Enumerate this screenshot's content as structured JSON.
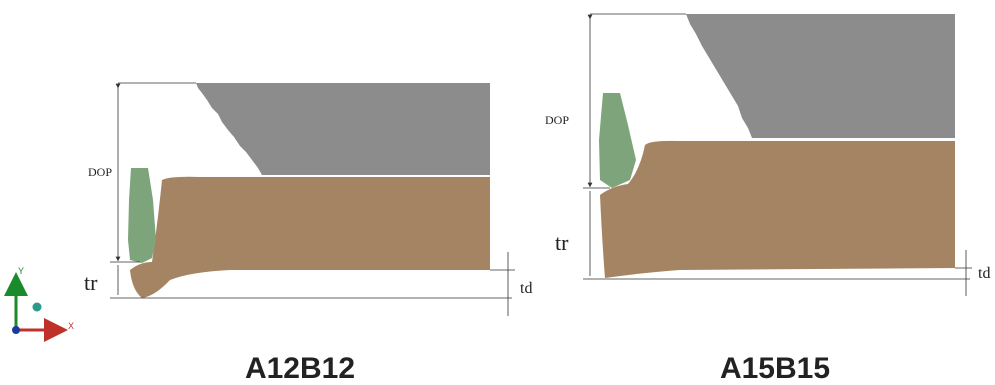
{
  "panels": [
    {
      "dop": "DOP",
      "tr": "tr",
      "td": "td",
      "label": "A12B12"
    },
    {
      "dop": "DOP",
      "tr": "tr",
      "td": "td",
      "label": "A15B15"
    }
  ],
  "axes": {
    "y": "Y",
    "x": "X"
  }
}
